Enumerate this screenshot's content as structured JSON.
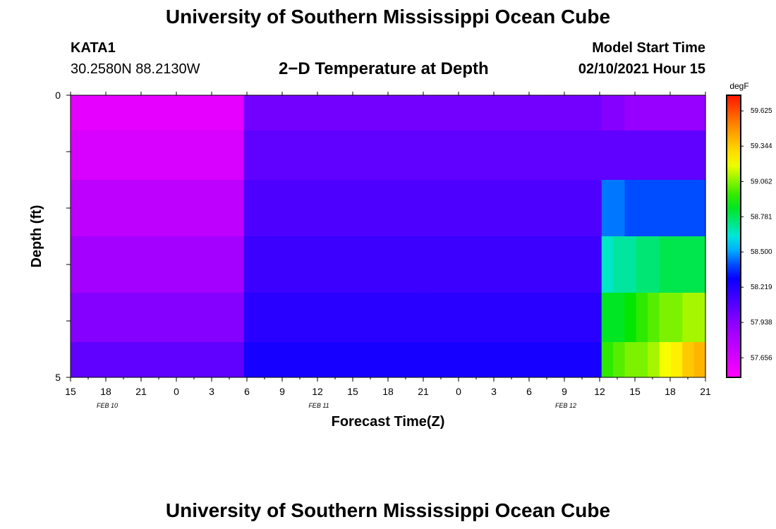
{
  "header": {
    "title": "University of Southern Mississippi Ocean Cube",
    "station": "KATA1",
    "coordinates": "30.2580N 88.2130W",
    "plot_title": "2−D Temperature at Depth",
    "start_label": "Model Start Time",
    "start_value": "02/10/2021 Hour 15"
  },
  "footer": {
    "title": "University of Southern Mississippi Ocean Cube"
  },
  "chart_data": {
    "type": "heatmap",
    "title": "2−D Temperature at Depth",
    "xlabel": "Forecast Time(Z)",
    "ylabel": "Depth (ft)",
    "x_tick_labels": [
      "15",
      "18",
      "21",
      "0",
      "3",
      "6",
      "9",
      "12",
      "15",
      "18",
      "21",
      "0",
      "3",
      "6",
      "9",
      "12",
      "15",
      "18",
      "21"
    ],
    "date_labels": [
      {
        "label": "FEB 10",
        "at_tick": 1
      },
      {
        "label": "FEB 11",
        "at_tick": 7
      },
      {
        "label": "FEB 12",
        "at_tick": 14
      }
    ],
    "y_range": [
      0,
      5
    ],
    "y_tick_labels": [
      "0",
      "5"
    ],
    "colorbar": {
      "unit": "degF",
      "min": 57.5,
      "max": 59.75,
      "labels": [
        "59.625",
        "59.344",
        "59.062",
        "58.781",
        "58.500",
        "58.219",
        "57.938",
        "57.656"
      ]
    },
    "grid": false,
    "hours_from_start": [
      0,
      1,
      2,
      3,
      4,
      5,
      6,
      7,
      8,
      9,
      10,
      11,
      12,
      13,
      14,
      15,
      16,
      17,
      18,
      19,
      20,
      21,
      22,
      23,
      24,
      25,
      26,
      27,
      28,
      29,
      30,
      31,
      32,
      33,
      34,
      35,
      36,
      37,
      38,
      39,
      40,
      41,
      42,
      43,
      44,
      45,
      46,
      47,
      48,
      49,
      50,
      51,
      52,
      53,
      54
    ],
    "depths_ft": [
      0.25,
      1.0,
      2.0,
      3.0,
      4.0,
      4.75
    ],
    "temperature_degF": [
      [
        57.6,
        57.6,
        57.6,
        57.6,
        57.6,
        57.6,
        57.6,
        57.6,
        57.6,
        57.6,
        57.6,
        57.6,
        57.6,
        57.6,
        57.6,
        58.0,
        58.0,
        58.0,
        58.0,
        58.0,
        58.0,
        58.0,
        58.0,
        58.0,
        58.0,
        58.0,
        58.0,
        58.0,
        58.0,
        58.0,
        58.0,
        58.0,
        58.0,
        58.0,
        58.0,
        58.0,
        58.0,
        58.0,
        58.0,
        58.0,
        58.0,
        58.0,
        58.0,
        58.0,
        58.0,
        58.0,
        57.95,
        57.95,
        57.9,
        57.9,
        57.9,
        57.9,
        57.9,
        57.9,
        57.9
      ],
      [
        57.65,
        57.65,
        57.65,
        57.65,
        57.65,
        57.65,
        57.65,
        57.65,
        57.65,
        57.65,
        57.65,
        57.65,
        57.65,
        57.65,
        57.65,
        58.05,
        58.05,
        58.05,
        58.05,
        58.05,
        58.05,
        58.05,
        58.05,
        58.05,
        58.05,
        58.05,
        58.05,
        58.05,
        58.05,
        58.05,
        58.05,
        58.05,
        58.05,
        58.05,
        58.05,
        58.05,
        58.05,
        58.05,
        58.05,
        58.05,
        58.05,
        58.05,
        58.05,
        58.05,
        58.05,
        58.05,
        58.05,
        58.05,
        58.05,
        58.05,
        58.05,
        58.05,
        58.05,
        58.05,
        58.05
      ],
      [
        57.75,
        57.75,
        57.75,
        57.75,
        57.75,
        57.75,
        57.75,
        57.75,
        57.75,
        57.75,
        57.75,
        57.75,
        57.75,
        57.75,
        57.75,
        58.1,
        58.1,
        58.1,
        58.1,
        58.1,
        58.1,
        58.1,
        58.1,
        58.1,
        58.1,
        58.1,
        58.1,
        58.1,
        58.1,
        58.1,
        58.1,
        58.1,
        58.1,
        58.1,
        58.1,
        58.1,
        58.1,
        58.1,
        58.1,
        58.1,
        58.1,
        58.1,
        58.1,
        58.1,
        58.1,
        58.1,
        58.45,
        58.45,
        58.4,
        58.4,
        58.4,
        58.4,
        58.4,
        58.4,
        58.4
      ],
      [
        57.85,
        57.85,
        57.85,
        57.85,
        57.85,
        57.85,
        57.85,
        57.85,
        57.85,
        57.85,
        57.85,
        57.85,
        57.85,
        57.85,
        57.85,
        58.15,
        58.15,
        58.15,
        58.15,
        58.15,
        58.15,
        58.15,
        58.15,
        58.15,
        58.15,
        58.15,
        58.15,
        58.15,
        58.15,
        58.15,
        58.15,
        58.15,
        58.15,
        58.15,
        58.15,
        58.15,
        58.15,
        58.15,
        58.15,
        58.15,
        58.15,
        58.15,
        58.15,
        58.15,
        58.15,
        58.15,
        58.65,
        58.7,
        58.7,
        58.75,
        58.75,
        58.8,
        58.8,
        58.8,
        58.8
      ],
      [
        57.95,
        57.95,
        57.95,
        57.95,
        57.95,
        57.95,
        57.95,
        57.95,
        57.95,
        57.95,
        57.95,
        57.95,
        57.95,
        57.95,
        57.95,
        58.2,
        58.2,
        58.2,
        58.2,
        58.2,
        58.2,
        58.2,
        58.2,
        58.2,
        58.2,
        58.2,
        58.2,
        58.2,
        58.2,
        58.2,
        58.2,
        58.2,
        58.2,
        58.2,
        58.2,
        58.2,
        58.2,
        58.2,
        58.2,
        58.2,
        58.2,
        58.2,
        58.2,
        58.2,
        58.2,
        58.2,
        58.85,
        58.85,
        58.9,
        58.95,
        59.0,
        59.05,
        59.05,
        59.1,
        59.1
      ],
      [
        58.05,
        58.05,
        58.05,
        58.05,
        58.05,
        58.05,
        58.05,
        58.05,
        58.05,
        58.05,
        58.05,
        58.05,
        58.05,
        58.05,
        58.05,
        58.25,
        58.25,
        58.25,
        58.25,
        58.25,
        58.25,
        58.25,
        58.25,
        58.25,
        58.25,
        58.25,
        58.25,
        58.25,
        58.25,
        58.25,
        58.25,
        58.25,
        58.25,
        58.25,
        58.25,
        58.25,
        58.25,
        58.25,
        58.25,
        58.25,
        58.25,
        58.25,
        58.25,
        58.25,
        58.25,
        58.25,
        58.95,
        59.0,
        59.05,
        59.05,
        59.1,
        59.2,
        59.25,
        59.35,
        59.4
      ]
    ]
  }
}
